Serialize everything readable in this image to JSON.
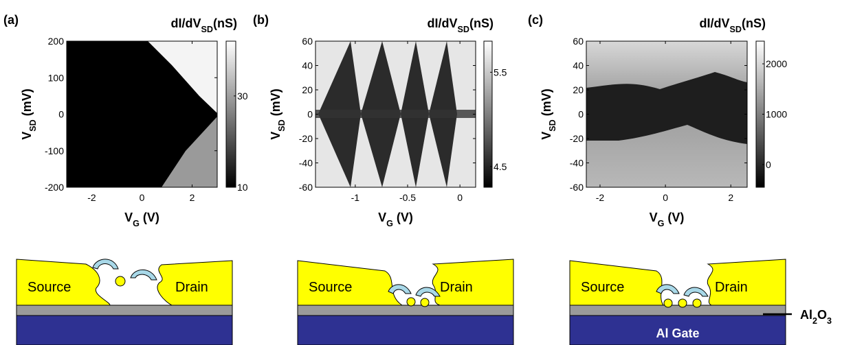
{
  "chart_data": [
    {
      "type": "heatmap",
      "panel_label": "(a)",
      "colorbar_label": [
        "dI/dV",
        "SD",
        "(nS)"
      ],
      "xlabel": [
        "V",
        "G",
        " (V)"
      ],
      "ylabel": [
        "V",
        "SD",
        " (mV)"
      ],
      "xlim": [
        -3,
        3
      ],
      "xticks": [
        -2,
        0,
        2
      ],
      "ylim": [
        -200,
        200
      ],
      "yticks": [
        -200,
        -100,
        0,
        100,
        200
      ],
      "clim": [
        10,
        42
      ],
      "cticks": [
        10,
        30
      ]
    },
    {
      "type": "heatmap",
      "panel_label": "(b)",
      "colorbar_label": [
        "dI/dV",
        "SD",
        "(nS)"
      ],
      "xlabel": [
        "V",
        "G",
        " (V)"
      ],
      "ylabel": [
        "V",
        "SD",
        " (mV)"
      ],
      "xlim": [
        -1.38,
        0.15
      ],
      "xticks": [
        -1,
        -0.5,
        0
      ],
      "ylim": [
        -60,
        60
      ],
      "yticks": [
        -60,
        -40,
        -20,
        0,
        20,
        40,
        60
      ],
      "clim": [
        4.28,
        5.83
      ],
      "cticks": [
        4.5,
        5.5
      ]
    },
    {
      "type": "heatmap",
      "panel_label": "(c)",
      "colorbar_label": [
        "dI/dV",
        "SD",
        "(nS)"
      ],
      "xlabel": [
        "V",
        "G",
        " (V)"
      ],
      "ylabel": [
        "V",
        "SD",
        " (mV)"
      ],
      "xlim": [
        -2.42,
        2.5
      ],
      "xticks": [
        -2,
        0,
        2
      ],
      "ylim": [
        -60,
        60
      ],
      "yticks": [
        -60,
        -40,
        -20,
        0,
        20,
        40,
        60
      ],
      "clim": [
        -450,
        2450
      ],
      "cticks": [
        0,
        1000,
        2000
      ]
    }
  ],
  "schematics": [
    {
      "source": "Source",
      "drain": "Drain"
    },
    {
      "source": "Source",
      "drain": "Drain"
    },
    {
      "source": "Source",
      "drain": "Drain",
      "gate": "Al Gate",
      "oxide": [
        "Al",
        "2",
        "O",
        "3"
      ]
    }
  ]
}
